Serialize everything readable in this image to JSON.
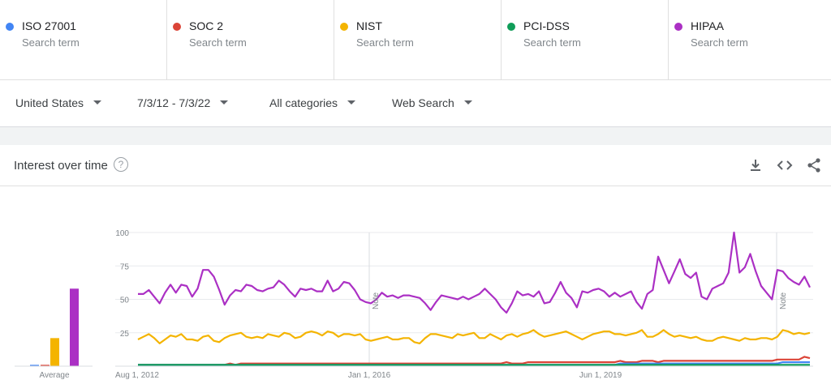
{
  "terms": [
    {
      "name": "ISO 27001",
      "sub": "Search term",
      "color": "#4285f4"
    },
    {
      "name": "SOC 2",
      "sub": "Search term",
      "color": "#db4437"
    },
    {
      "name": "NIST",
      "sub": "Search term",
      "color": "#f4b400"
    },
    {
      "name": "PCI-DSS",
      "sub": "Search term",
      "color": "#0f9d58"
    },
    {
      "name": "HIPAA",
      "sub": "Search term",
      "color": "#ab30c4"
    }
  ],
  "filters": {
    "region": "United States",
    "time": "7/3/12 - 7/3/22",
    "category": "All categories",
    "search_type": "Web Search"
  },
  "panel": {
    "title": "Interest over time",
    "help_glyph": "?",
    "icons": [
      "download-icon",
      "embed-code-icon",
      "share-icon"
    ]
  },
  "chart_data": {
    "type": "line",
    "x_start": "2012-08-01",
    "x_end": "2022-07-03",
    "x_ticks": [
      "Aug 1, 2012",
      "Jan 1, 2016",
      "Jun 1, 2019"
    ],
    "y_ticks": [
      100,
      75,
      50,
      25
    ],
    "ylim": [
      0,
      100
    ],
    "grid": true,
    "annotations": [
      "Note",
      "Note"
    ],
    "average_label": "Average",
    "averages": [
      1,
      1,
      21,
      58
    ],
    "series": [
      {
        "name": "HIPAA",
        "color": "#ab30c4",
        "values": [
          54,
          54,
          57,
          52,
          47,
          55,
          61,
          55,
          61,
          60,
          52,
          58,
          72,
          72,
          67,
          57,
          46,
          53,
          57,
          56,
          61,
          60,
          57,
          56,
          58,
          59,
          64,
          61,
          56,
          52,
          58,
          57,
          58,
          56,
          56,
          64,
          56,
          58,
          63,
          62,
          57,
          50,
          48,
          47,
          50,
          55,
          52,
          53,
          51,
          53,
          53,
          52,
          51,
          47,
          42,
          48,
          53,
          52,
          51,
          50,
          52,
          50,
          52,
          54,
          58,
          54,
          50,
          44,
          40,
          47,
          56,
          53,
          54,
          52,
          56,
          47,
          48,
          55,
          63,
          55,
          51,
          44,
          56,
          55,
          57,
          58,
          56,
          52,
          55,
          52,
          54,
          56,
          48,
          43,
          54,
          57,
          82,
          72,
          62,
          71,
          80,
          69,
          66,
          70,
          52,
          50,
          58,
          60,
          62,
          70,
          100,
          70,
          74,
          84,
          71,
          60,
          55,
          50,
          72,
          71,
          66,
          63,
          61,
          67,
          59
        ]
      },
      {
        "name": "NIST",
        "color": "#f4b400",
        "values": [
          20,
          22,
          24,
          21,
          17,
          20,
          23,
          22,
          24,
          20,
          20,
          19,
          22,
          23,
          19,
          18,
          21,
          23,
          24,
          25,
          22,
          21,
          22,
          21,
          24,
          23,
          22,
          25,
          24,
          21,
          22,
          25,
          26,
          25,
          23,
          26,
          25,
          22,
          24,
          24,
          23,
          24,
          20,
          19,
          20,
          21,
          22,
          20,
          20,
          21,
          21,
          18,
          17,
          21,
          24,
          24,
          23,
          22,
          21,
          24,
          23,
          24,
          25,
          21,
          21,
          24,
          22,
          20,
          23,
          24,
          22,
          24,
          25,
          27,
          24,
          22,
          23,
          24,
          25,
          26,
          24,
          22,
          20,
          22,
          24,
          25,
          26,
          26,
          24,
          24,
          23,
          24,
          25,
          27,
          22,
          22,
          24,
          27,
          24,
          22,
          23,
          22,
          21,
          22,
          20,
          19,
          19,
          21,
          22,
          21,
          20,
          19,
          21,
          20,
          20,
          21,
          21,
          20,
          22,
          27,
          26,
          24,
          25,
          24,
          25
        ]
      },
      {
        "name": "SOC 2",
        "color": "#db4437",
        "values": [
          1,
          1,
          1,
          1,
          1,
          1,
          1,
          1,
          1,
          1,
          1,
          1,
          1,
          1,
          1,
          1,
          1,
          2,
          1,
          2,
          2,
          2,
          2,
          2,
          2,
          2,
          2,
          2,
          2,
          2,
          2,
          2,
          2,
          2,
          2,
          2,
          2,
          2,
          2,
          2,
          2,
          2,
          2,
          2,
          2,
          2,
          2,
          2,
          2,
          2,
          2,
          2,
          2,
          2,
          2,
          2,
          2,
          2,
          2,
          2,
          2,
          2,
          2,
          2,
          2,
          2,
          2,
          2,
          3,
          2,
          2,
          2,
          3,
          3,
          3,
          3,
          3,
          3,
          3,
          3,
          3,
          3,
          3,
          3,
          3,
          3,
          3,
          3,
          3,
          4,
          3,
          3,
          3,
          4,
          4,
          4,
          3,
          4,
          4,
          4,
          4,
          4,
          4,
          4,
          4,
          4,
          4,
          4,
          4,
          4,
          4,
          4,
          4,
          4,
          4,
          4,
          4,
          4,
          5,
          5,
          5,
          5,
          5,
          7,
          6
        ]
      },
      {
        "name": "ISO 27001",
        "color": "#4285f4",
        "values": [
          1,
          1,
          1,
          1,
          1,
          1,
          1,
          1,
          1,
          1,
          1,
          1,
          1,
          1,
          1,
          1,
          1,
          1,
          1,
          1,
          1,
          1,
          1,
          1,
          1,
          1,
          1,
          1,
          1,
          1,
          1,
          1,
          1,
          1,
          1,
          1,
          1,
          1,
          1,
          1,
          1,
          1,
          1,
          1,
          1,
          1,
          1,
          1,
          1,
          1,
          1,
          1,
          1,
          1,
          1,
          1,
          1,
          1,
          1,
          1,
          1,
          1,
          1,
          1,
          1,
          1,
          1,
          1,
          1,
          1,
          1,
          1,
          1,
          1,
          1,
          1,
          1,
          1,
          1,
          1,
          1,
          1,
          1,
          1,
          1,
          1,
          1,
          1,
          1,
          2,
          2,
          2,
          2,
          2,
          2,
          2,
          2,
          2,
          2,
          2,
          2,
          2,
          2,
          2,
          2,
          2,
          2,
          2,
          2,
          2,
          2,
          2,
          2,
          2,
          2,
          2,
          2,
          2,
          2,
          3,
          3,
          3,
          3,
          3,
          3
        ]
      },
      {
        "name": "PCI-DSS",
        "color": "#0f9d58",
        "values": [
          1,
          1,
          1,
          1,
          1,
          1,
          1,
          1,
          1,
          1,
          1,
          1,
          1,
          1,
          1,
          1,
          1,
          1,
          1,
          1,
          1,
          1,
          1,
          1,
          1,
          1,
          1,
          1,
          1,
          1,
          1,
          1,
          1,
          1,
          1,
          1,
          1,
          1,
          1,
          1,
          1,
          1,
          1,
          1,
          1,
          1,
          1,
          1,
          1,
          1,
          1,
          1,
          1,
          1,
          1,
          1,
          1,
          1,
          1,
          1,
          1,
          1,
          1,
          1,
          1,
          1,
          1,
          1,
          1,
          1,
          1,
          1,
          1,
          1,
          1,
          1,
          1,
          1,
          1,
          1,
          1,
          1,
          1,
          1,
          1,
          1,
          1,
          1,
          1,
          1,
          1,
          1,
          1,
          1,
          1,
          1,
          1,
          1,
          1,
          1,
          1,
          1,
          1,
          1,
          1,
          1,
          1,
          1,
          1,
          1,
          1,
          1,
          1,
          1,
          1,
          1,
          1,
          1,
          1,
          1,
          1,
          1,
          1,
          1,
          1
        ]
      }
    ]
  }
}
